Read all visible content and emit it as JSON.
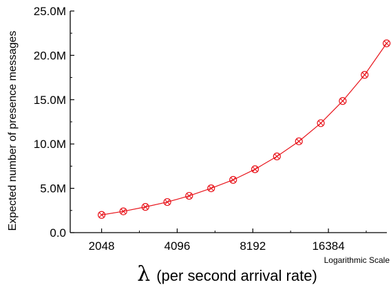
{
  "chart_data": {
    "type": "line",
    "x_scale": "log2",
    "x_ticks": [
      2048,
      4096,
      8192,
      16384
    ],
    "x_tick_labels": [
      "2048",
      "4096",
      "8192",
      "16384"
    ],
    "xlim": [
      1536,
      28000
    ],
    "y_ticks": [
      0,
      5000000,
      10000000,
      15000000,
      20000000,
      25000000
    ],
    "y_tick_labels": [
      "0.0",
      "5.0M",
      "10.0M",
      "15.0M",
      "20.0M",
      "25.0M"
    ],
    "ylim": [
      0,
      25000000
    ],
    "ylabel": "Expected number of presence messages",
    "xlabel_symbol": "λ",
    "xlabel_text": "(per second arrival rate)",
    "x_scale_note": "Logarithmic Scale",
    "series": [
      {
        "color": "#e8141b",
        "marker": "circle-x",
        "points": [
          {
            "x": 2048,
            "y": 2000000
          },
          {
            "x": 2500,
            "y": 2400000
          },
          {
            "x": 3060,
            "y": 2900000
          },
          {
            "x": 3740,
            "y": 3450000
          },
          {
            "x": 4570,
            "y": 4150000
          },
          {
            "x": 5590,
            "y": 5000000
          },
          {
            "x": 6840,
            "y": 5950000
          },
          {
            "x": 8360,
            "y": 7150000
          },
          {
            "x": 10220,
            "y": 8600000
          },
          {
            "x": 12500,
            "y": 10300000
          },
          {
            "x": 15280,
            "y": 12350000
          },
          {
            "x": 18680,
            "y": 14850000
          },
          {
            "x": 22840,
            "y": 17800000
          },
          {
            "x": 27930,
            "y": 21350000
          }
        ]
      }
    ]
  }
}
